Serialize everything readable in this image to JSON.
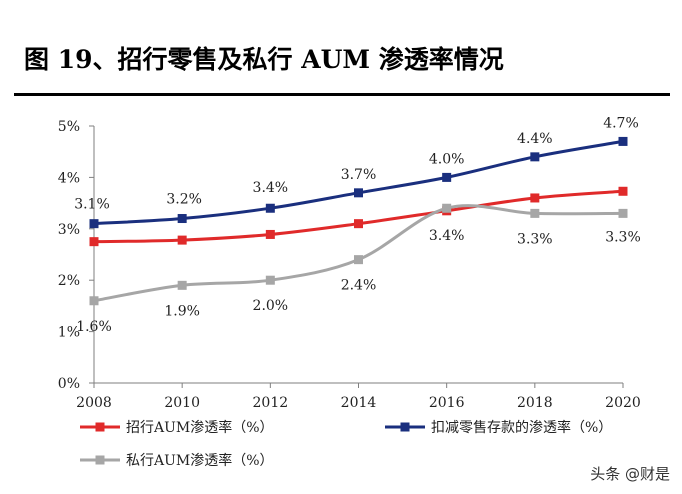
{
  "figure": {
    "title": "图 19、招行零售及私行 AUM 渗透率情况",
    "watermark": "头条 @财是"
  },
  "chart_data": {
    "type": "line",
    "x": [
      2008,
      2010,
      2012,
      2014,
      2016,
      2018,
      2020
    ],
    "xlim": [
      2008,
      2020
    ],
    "ylim": [
      0,
      5
    ],
    "yticks": [
      0,
      1,
      2,
      3,
      4,
      5
    ],
    "yticklabels": [
      "0%",
      "1%",
      "2%",
      "3%",
      "4%",
      "5%"
    ],
    "xticklabels": [
      "2008",
      "2010",
      "2012",
      "2014",
      "2016",
      "2018",
      "2020"
    ],
    "grid": false,
    "legend_position": "bottom",
    "series": [
      {
        "name": "招行AUM渗透率（%）",
        "color": "#e02a2a",
        "marker": "square",
        "points": [
          {
            "x": 2008,
            "y": 2.75
          },
          {
            "x": 2010,
            "y": 2.78
          },
          {
            "x": 2012,
            "y": 2.89
          },
          {
            "x": 2014,
            "y": 3.1
          },
          {
            "x": 2016,
            "y": 3.35
          },
          {
            "x": 2018,
            "y": 3.6
          },
          {
            "x": 2020,
            "y": 3.73
          }
        ],
        "data_labels": []
      },
      {
        "name": "扣减零售存款的渗透率（%）",
        "color": "#1a2f7e",
        "marker": "square",
        "points": [
          {
            "x": 2008,
            "y": 3.1
          },
          {
            "x": 2010,
            "y": 3.2
          },
          {
            "x": 2012,
            "y": 3.4
          },
          {
            "x": 2014,
            "y": 3.7
          },
          {
            "x": 2016,
            "y": 4.0
          },
          {
            "x": 2018,
            "y": 4.4
          },
          {
            "x": 2020,
            "y": 4.7
          }
        ],
        "data_labels": [
          "3.1%",
          "3.2%",
          "3.4%",
          "3.7%",
          "4.0%",
          "4.4%",
          "4.7%"
        ]
      },
      {
        "name": "私行AUM渗透率（%）",
        "color": "#a6a6a6",
        "marker": "square",
        "points": [
          {
            "x": 2008,
            "y": 1.6
          },
          {
            "x": 2010,
            "y": 1.9
          },
          {
            "x": 2012,
            "y": 2.0
          },
          {
            "x": 2014,
            "y": 2.4
          },
          {
            "x": 2016,
            "y": 3.4
          },
          {
            "x": 2018,
            "y": 3.3
          },
          {
            "x": 2020,
            "y": 3.3
          }
        ],
        "data_labels": [
          "1.6%",
          "1.9%",
          "2.0%",
          "2.4%",
          "3.4%",
          "3.3%",
          "3.3%"
        ]
      }
    ]
  }
}
